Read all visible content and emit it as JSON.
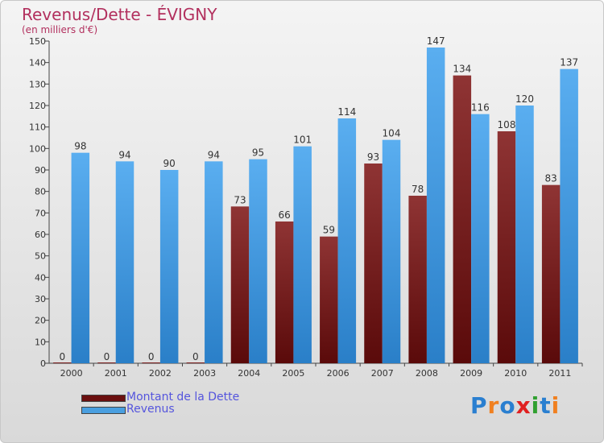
{
  "header": {
    "title": "Revenus/Dette - ÉVIGNY",
    "subtitle": "(en milliers d'€)"
  },
  "chart_data": {
    "type": "bar",
    "categories": [
      "2000",
      "2001",
      "2002",
      "2003",
      "2004",
      "2005",
      "2006",
      "2007",
      "2008",
      "2009",
      "2010",
      "2011"
    ],
    "series": [
      {
        "name": "Montant de la Dette",
        "color": "#7a1f1f",
        "values": [
          0,
          0,
          0,
          0,
          73,
          66,
          59,
          93,
          78,
          134,
          108,
          83
        ]
      },
      {
        "name": "Revenus",
        "color": "#4a9fe0",
        "values": [
          98,
          94,
          90,
          94,
          95,
          101,
          114,
          104,
          147,
          116,
          120,
          137
        ]
      }
    ],
    "ylim": [
      0,
      150
    ],
    "yticks": [
      0,
      10,
      20,
      30,
      40,
      50,
      60,
      70,
      80,
      90,
      100,
      110,
      120,
      130,
      140,
      150
    ],
    "grid": false,
    "legend_position": "bottom-left"
  },
  "legend": [
    {
      "label": "Montant de la Dette",
      "color": "#6b0f0f"
    },
    {
      "label": "Revenus",
      "color": "#4a9fe0"
    }
  ],
  "logo": {
    "letters": [
      "P",
      "r",
      "o",
      "x",
      "i",
      "t",
      "i"
    ],
    "colors": [
      "#2a7fd0",
      "#f08020",
      "#2a7fd0",
      "#e02020",
      "#30a030",
      "#2a7fd0",
      "#f08020"
    ]
  }
}
